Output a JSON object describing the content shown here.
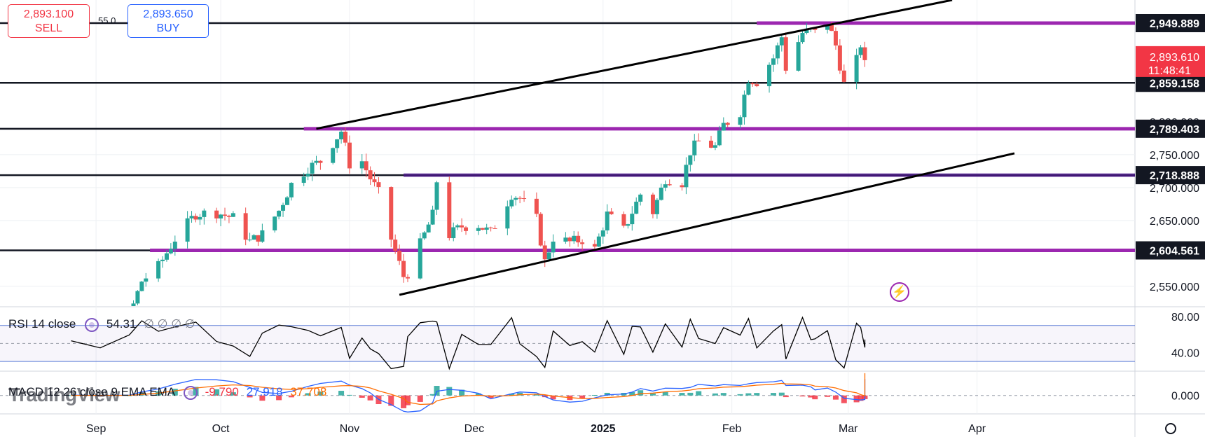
{
  "trade": {
    "sell_price": "2,893.100",
    "sell_label": "SELL",
    "buy_price": "2,893.650",
    "buy_label": "BUY",
    "spread": "55.0"
  },
  "price_axis": {
    "ticks": [
      "2,750.000",
      "2,700.000",
      "2,650.000",
      "2,550.000"
    ],
    "hidden_tick": "2,800.000",
    "levels": [
      {
        "value": 2949.889,
        "label": "2,949.889"
      },
      {
        "value": 2859.158,
        "label": "2,859.158"
      },
      {
        "value": 2789.403,
        "label": "2,789.403"
      },
      {
        "value": 2718.888,
        "label": "2,718.888"
      },
      {
        "value": 2604.561,
        "label": "2,604.561"
      }
    ],
    "current": {
      "value": 2893.61,
      "label": "2,893.610",
      "countdown": "11:48:41"
    }
  },
  "rsi": {
    "title": "RSI 14 close",
    "value": "54.31",
    "extra": "∅ ∅ ∅ ∅",
    "ticks": [
      "80.00",
      "40.00"
    ]
  },
  "macd": {
    "title": "MACD 12 26 close 9 EMA EMA",
    "hist": "-9.790",
    "macd": "27.918",
    "signal": "37.708",
    "tick": "0.000"
  },
  "time_axis": {
    "labels": [
      "Sep",
      "Oct",
      "Nov",
      "Dec",
      "2025",
      "Feb",
      "Mar",
      "Apr"
    ]
  },
  "watermark": "TradingView",
  "colors": {
    "up": "#26a69a",
    "down": "#ef5350",
    "level": "#131722",
    "zone": "#9c27b0",
    "macd_line": "#2962ff",
    "signal_line": "#ff6d00",
    "price_label": "#f23645"
  },
  "chart_data": {
    "type": "candlestick",
    "symbol_note": "daily candles, Aug 2024 – Mar 2025",
    "ylim": [
      2520,
      2985
    ],
    "x_axis": [
      "2024-08-19",
      "2025-04-10"
    ],
    "close_series": [
      [
        "2024-08-19",
        2500
      ],
      [
        "2024-08-26",
        2506
      ],
      [
        "2024-09-02",
        2497
      ],
      [
        "2024-09-09",
        2504
      ],
      [
        "2024-09-12",
        2558
      ],
      [
        "2024-09-16",
        2580
      ],
      [
        "2024-09-20",
        2622
      ],
      [
        "2024-09-25",
        2660
      ],
      [
        "2024-09-30",
        2662
      ],
      [
        "2024-10-04",
        2654
      ],
      [
        "2024-10-08",
        2618
      ],
      [
        "2024-10-11",
        2629
      ],
      [
        "2024-10-15",
        2665
      ],
      [
        "2024-10-18",
        2705
      ],
      [
        "2024-10-22",
        2730
      ],
      [
        "2024-10-25",
        2740
      ],
      [
        "2024-10-30",
        2786
      ],
      [
        "2024-11-01",
        2736
      ],
      [
        "2024-11-04",
        2740
      ],
      [
        "2024-11-06",
        2714
      ],
      [
        "2024-11-08",
        2692
      ],
      [
        "2024-11-11",
        2622
      ],
      [
        "2024-11-14",
        2565
      ],
      [
        "2024-11-15",
        2570
      ],
      [
        "2024-11-18",
        2614
      ],
      [
        "2024-11-21",
        2658
      ],
      [
        "2024-11-22",
        2710
      ],
      [
        "2024-11-25",
        2628
      ],
      [
        "2024-11-28",
        2641
      ],
      [
        "2024-12-02",
        2643
      ],
      [
        "2024-12-05",
        2631
      ],
      [
        "2024-12-10",
        2690
      ],
      [
        "2024-12-12",
        2684
      ],
      [
        "2024-12-16",
        2652
      ],
      [
        "2024-12-18",
        2587
      ],
      [
        "2024-12-20",
        2624
      ],
      [
        "2024-12-24",
        2617
      ],
      [
        "2024-12-27",
        2621
      ],
      [
        "2024-12-30",
        2606
      ],
      [
        "2025-01-02",
        2659
      ],
      [
        "2025-01-06",
        2635
      ],
      [
        "2025-01-08",
        2663
      ],
      [
        "2025-01-10",
        2690
      ],
      [
        "2025-01-13",
        2663
      ],
      [
        "2025-01-16",
        2714
      ],
      [
        "2025-01-20",
        2708
      ],
      [
        "2025-01-22",
        2755
      ],
      [
        "2025-01-24",
        2770
      ],
      [
        "2025-01-28",
        2762
      ],
      [
        "2025-01-30",
        2795
      ],
      [
        "2025-02-03",
        2815
      ],
      [
        "2025-02-05",
        2866
      ],
      [
        "2025-02-07",
        2861
      ],
      [
        "2025-02-11",
        2897
      ],
      [
        "2025-02-13",
        2929
      ],
      [
        "2025-02-14",
        2882
      ],
      [
        "2025-02-18",
        2935
      ],
      [
        "2025-02-20",
        2938
      ],
      [
        "2025-02-21",
        2935
      ],
      [
        "2025-02-24",
        2952
      ],
      [
        "2025-02-26",
        2916
      ],
      [
        "2025-02-28",
        2857
      ],
      [
        "2025-03-03",
        2893
      ],
      [
        "2025-03-04",
        2918
      ],
      [
        "2025-03-05",
        2893.61
      ]
    ],
    "price_levels": [
      2949.889,
      2859.158,
      2789.403,
      2718.888,
      2604.561
    ],
    "trendlines": [
      {
        "from": [
          "2024-10-24",
          2789.4
        ],
        "to": [
          "2025-03-26",
          2985
        ]
      },
      {
        "from": [
          "2024-11-13",
          2537
        ],
        "to": [
          "2025-04-10",
          2752
        ]
      }
    ],
    "rsi": {
      "range": [
        20,
        90
      ],
      "bands": [
        70,
        30
      ],
      "mid": 50,
      "last": 54.31
    },
    "macd": {
      "range": [
        -30,
        40
      ],
      "macd": 27.918,
      "signal": 37.708,
      "hist": -9.79
    }
  }
}
